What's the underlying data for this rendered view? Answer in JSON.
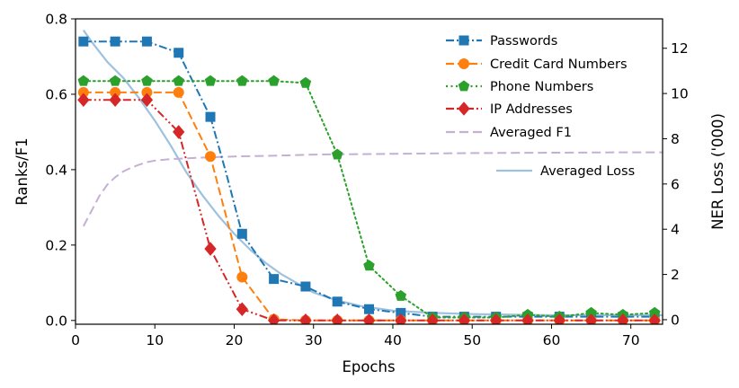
{
  "chart_data": {
    "type": "line",
    "xlabel": "Epochs",
    "ylabel": "Ranks/F1",
    "ylabel_right": "NER Loss ('000)",
    "xlim": [
      0,
      74
    ],
    "ylim": [
      -0.01,
      0.8
    ],
    "ylim_right": [
      -0.2,
      13.3
    ],
    "x_ticks": [
      0,
      10,
      20,
      30,
      40,
      50,
      60,
      70
    ],
    "y_ticks": [
      0.0,
      0.2,
      0.4,
      0.6,
      0.8
    ],
    "y_ticks_right": [
      0,
      2,
      4,
      6,
      8,
      10,
      12
    ],
    "grid": false,
    "legend_position": "top-right",
    "series": [
      {
        "name": "Passwords",
        "axis": "left",
        "color": "#1f77b4",
        "dash": "dashdot",
        "marker": "square",
        "x": [
          1,
          5,
          9,
          13,
          17,
          19,
          21,
          25,
          29,
          33,
          37,
          41,
          45,
          49,
          53,
          57,
          61,
          65,
          69,
          73
        ],
        "y": [
          0.74,
          0.74,
          0.74,
          0.71,
          0.54,
          0.39,
          0.23,
          0.11,
          0.09,
          0.05,
          0.03,
          0.02,
          0.01,
          0.01,
          0.01,
          0.01,
          0.01,
          0.01,
          0.01,
          0.01
        ],
        "marker_x": [
          1,
          5,
          9,
          13,
          17,
          21,
          25,
          29,
          33,
          37,
          41,
          45,
          49,
          53,
          57,
          61,
          65,
          69,
          73
        ]
      },
      {
        "name": "Credit Card Numbers",
        "axis": "left",
        "color": "#ff7f0e",
        "dash": "dashed",
        "marker": "circle",
        "x": [
          1,
          5,
          9,
          13,
          17,
          21,
          25,
          29,
          33,
          37,
          41,
          45,
          49,
          53,
          57,
          61,
          65,
          69,
          73
        ],
        "y": [
          0.605,
          0.605,
          0.605,
          0.605,
          0.435,
          0.115,
          0.003,
          0.0,
          0.0,
          0.0,
          0.0,
          0.0,
          0.0,
          0.0,
          0.0,
          0.0,
          0.0,
          0.0,
          0.0
        ]
      },
      {
        "name": "Phone Numbers",
        "axis": "left",
        "color": "#2ca02c",
        "dash": "dotted",
        "marker": "pentagon",
        "x": [
          1,
          5,
          9,
          13,
          17,
          21,
          25,
          29,
          33,
          37,
          41,
          45,
          49,
          53,
          57,
          61,
          65,
          69,
          73
        ],
        "y": [
          0.635,
          0.635,
          0.635,
          0.635,
          0.635,
          0.635,
          0.635,
          0.63,
          0.44,
          0.145,
          0.065,
          0.008,
          0.008,
          0.008,
          0.015,
          0.01,
          0.02,
          0.015,
          0.02
        ]
      },
      {
        "name": "IP Addresses",
        "axis": "left",
        "color": "#d62728",
        "dash": "dashdotdot",
        "marker": "diamond",
        "x": [
          1,
          5,
          9,
          13,
          17,
          21,
          25,
          29,
          33,
          37,
          41,
          45,
          49,
          53,
          57,
          61,
          65,
          69,
          73
        ],
        "y": [
          0.585,
          0.585,
          0.585,
          0.5,
          0.19,
          0.03,
          0.0,
          0.0,
          0.0,
          0.0,
          0.0,
          0.0,
          0.0,
          0.0,
          0.0,
          0.0,
          0.0,
          0.0,
          0.0
        ]
      },
      {
        "name": "Averaged F1",
        "axis": "left",
        "color": "#c5b0d5",
        "dash": "longdash",
        "marker": "none",
        "x": [
          1,
          2,
          3,
          4,
          5,
          6,
          7,
          8,
          9,
          10,
          12,
          14,
          16,
          20,
          25,
          30,
          40,
          50,
          60,
          70,
          74
        ],
        "y": [
          0.25,
          0.29,
          0.33,
          0.36,
          0.38,
          0.395,
          0.405,
          0.413,
          0.42,
          0.424,
          0.428,
          0.43,
          0.432,
          0.435,
          0.437,
          0.44,
          0.442,
          0.444,
          0.445,
          0.446,
          0.446
        ]
      },
      {
        "name": "Averaged Loss",
        "axis": "right",
        "color": "#9ec1de",
        "dash": "solid",
        "marker": "none",
        "x": [
          1,
          2,
          4,
          6,
          8,
          10,
          12,
          14,
          16,
          18,
          20,
          22,
          24,
          26,
          28,
          30,
          33,
          36,
          40,
          45,
          50,
          60,
          70,
          74
        ],
        "y": [
          12.8,
          12.3,
          11.4,
          10.7,
          9.8,
          8.8,
          7.7,
          6.5,
          5.5,
          4.6,
          3.8,
          3.1,
          2.5,
          2.0,
          1.6,
          1.2,
          0.85,
          0.6,
          0.4,
          0.3,
          0.25,
          0.2,
          0.2,
          0.2
        ]
      }
    ]
  }
}
